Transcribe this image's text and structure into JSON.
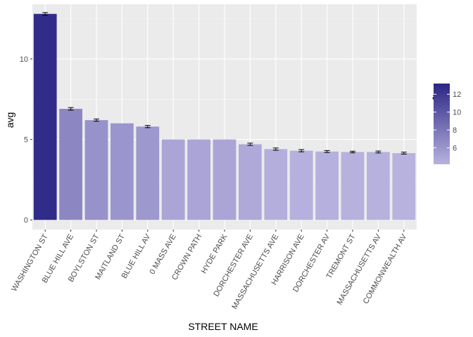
{
  "chart_data": {
    "type": "bar",
    "title": "",
    "xlabel": "STREET NAME",
    "ylabel": "avg",
    "categories": [
      "WASHINGTON ST",
      "BLUE HILL AVE",
      "BOYLSTON ST",
      "MAITLAND ST",
      "BLUE HILL AV",
      "0 MASS AVE",
      "CROWN PATH",
      "HYDE PARK",
      "DORCHESTER AVE",
      "MASSACHUSETTS AVE",
      "HARRISON AVE",
      "DORCHESTER AV",
      "TREMONT ST",
      "MASSACHUSETTS AV",
      "COMMONWEALTH AV"
    ],
    "values": [
      12.8,
      6.9,
      6.2,
      6.0,
      5.8,
      5.0,
      5.0,
      5.0,
      4.7,
      4.4,
      4.3,
      4.25,
      4.22,
      4.22,
      4.15
    ],
    "errors": [
      0.08,
      0.08,
      0.07,
      null,
      0.07,
      null,
      null,
      null,
      0.07,
      0.07,
      0.07,
      0.06,
      0.05,
      0.06,
      0.06
    ],
    "ylim": [
      -0.6,
      13.4
    ],
    "yticks": [
      0,
      5,
      10
    ],
    "grid": true,
    "legend": {
      "title": "avg",
      "placement": "right",
      "labels": [
        6,
        8,
        10,
        12
      ],
      "range": [
        4.15,
        13.2
      ],
      "color_low": "#b7b2de",
      "color_high": "#2b2685"
    }
  }
}
